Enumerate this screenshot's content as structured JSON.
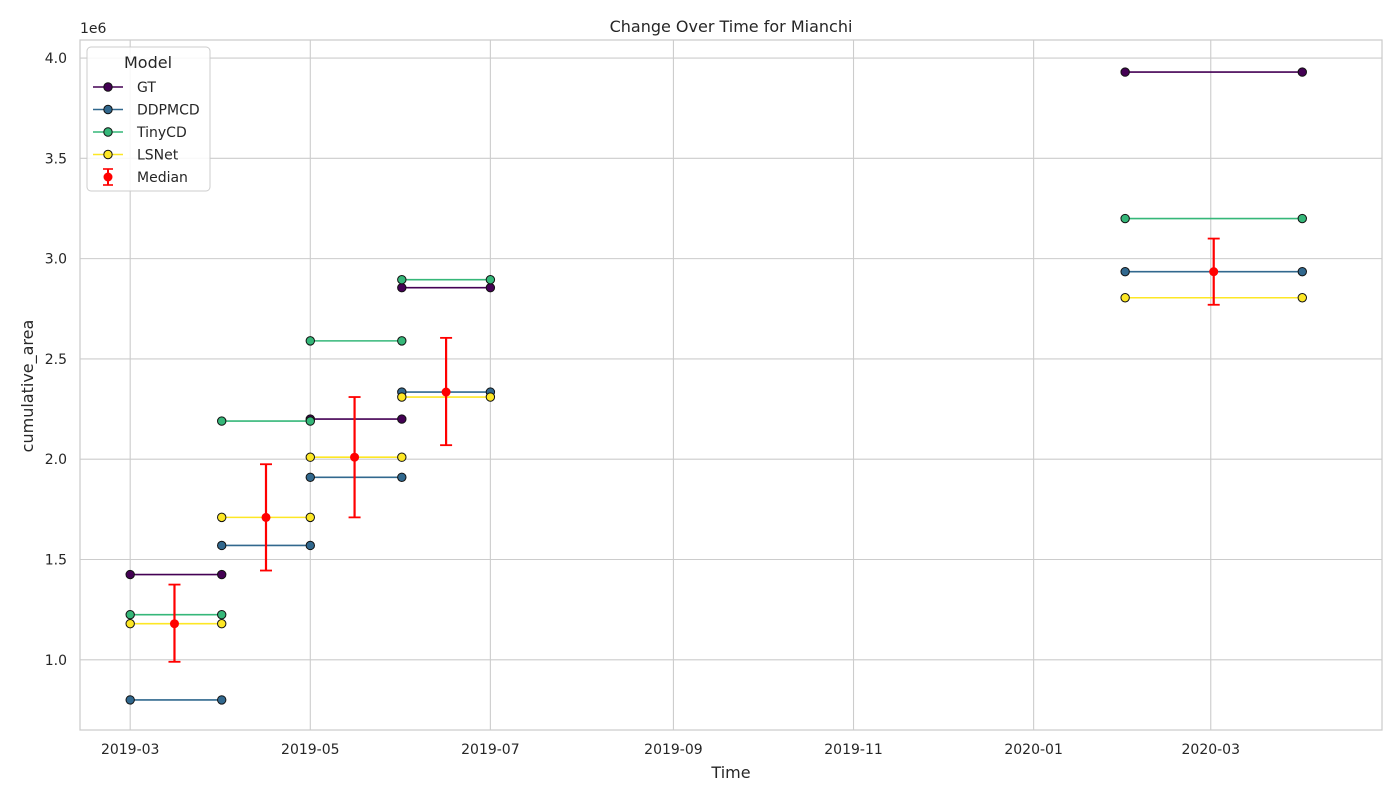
{
  "chart_data": {
    "type": "line",
    "title": "Change Over Time for Mianchi",
    "xlabel": "Time",
    "ylabel": "cumulative_area",
    "y_offset_label": "1e6",
    "ylim": [
      0.65,
      4.09
    ],
    "xlim": [
      "2019-02-12",
      "2020-04-28"
    ],
    "grid": true,
    "legend": {
      "title": "Model",
      "placement": "top-left",
      "entries": [
        "GT",
        "DDPMCD",
        "TinyCD",
        "LSNet",
        "Median"
      ]
    },
    "x_ticks": [
      {
        "date": "2019-03-01",
        "label": "2019-03"
      },
      {
        "date": "2019-05-01",
        "label": "2019-05"
      },
      {
        "date": "2019-07-01",
        "label": "2019-07"
      },
      {
        "date": "2019-09-01",
        "label": "2019-09"
      },
      {
        "date": "2019-11-01",
        "label": "2019-11"
      },
      {
        "date": "2020-01-01",
        "label": "2020-01"
      },
      {
        "date": "2020-03-01",
        "label": "2020-03"
      }
    ],
    "y_ticks": [
      {
        "value": 1.0,
        "label": "1.0"
      },
      {
        "value": 1.5,
        "label": "1.5"
      },
      {
        "value": 2.0,
        "label": "2.0"
      },
      {
        "value": 2.5,
        "label": "2.5"
      },
      {
        "value": 3.0,
        "label": "3.0"
      },
      {
        "value": 3.5,
        "label": "3.5"
      },
      {
        "value": 4.0,
        "label": "4.0"
      }
    ],
    "series": [
      {
        "name": "GT",
        "color": "#440154",
        "segments": [
          {
            "start": "2019-03-01",
            "end": "2019-04-01",
            "value": 1.425
          },
          {
            "start": "2019-05-01",
            "end": "2019-06-01",
            "value": 2.2
          },
          {
            "start": "2019-06-01",
            "end": "2019-07-01",
            "value": 2.855
          },
          {
            "start": "2020-02-01",
            "end": "2020-04-01",
            "value": 3.93
          }
        ]
      },
      {
        "name": "DDPMCD",
        "color": "#31688e",
        "segments": [
          {
            "start": "2019-03-01",
            "end": "2019-04-01",
            "value": 0.8
          },
          {
            "start": "2019-04-01",
            "end": "2019-05-01",
            "value": 1.57
          },
          {
            "start": "2019-05-01",
            "end": "2019-06-01",
            "value": 1.91
          },
          {
            "start": "2019-06-01",
            "end": "2019-07-01",
            "value": 2.335
          },
          {
            "start": "2020-02-01",
            "end": "2020-04-01",
            "value": 2.935
          }
        ]
      },
      {
        "name": "TinyCD",
        "color": "#35b779",
        "segments": [
          {
            "start": "2019-03-01",
            "end": "2019-04-01",
            "value": 1.225
          },
          {
            "start": "2019-04-01",
            "end": "2019-05-01",
            "value": 2.19
          },
          {
            "start": "2019-05-01",
            "end": "2019-06-01",
            "value": 2.59
          },
          {
            "start": "2019-06-01",
            "end": "2019-07-01",
            "value": 2.895
          },
          {
            "start": "2020-02-01",
            "end": "2020-04-01",
            "value": 3.2
          }
        ]
      },
      {
        "name": "LSNet",
        "color": "#fde725",
        "segments": [
          {
            "start": "2019-03-01",
            "end": "2019-04-01",
            "value": 1.18
          },
          {
            "start": "2019-04-01",
            "end": "2019-05-01",
            "value": 1.71
          },
          {
            "start": "2019-05-01",
            "end": "2019-06-01",
            "value": 2.01
          },
          {
            "start": "2019-06-01",
            "end": "2019-07-01",
            "value": 2.31
          },
          {
            "start": "2020-02-01",
            "end": "2020-04-01",
            "value": 2.805
          }
        ]
      }
    ],
    "median": {
      "name": "Median",
      "color": "#ff0000",
      "points": [
        {
          "date": "2019-03-16",
          "value": 1.18,
          "low": 0.99,
          "high": 1.375
        },
        {
          "date": "2019-04-16",
          "value": 1.71,
          "low": 1.445,
          "high": 1.975
        },
        {
          "date": "2019-05-16",
          "value": 2.01,
          "low": 1.71,
          "high": 2.31
        },
        {
          "date": "2019-06-16",
          "value": 2.335,
          "low": 2.07,
          "high": 2.605
        },
        {
          "date": "2020-03-02",
          "value": 2.935,
          "low": 2.77,
          "high": 3.1
        }
      ]
    }
  }
}
